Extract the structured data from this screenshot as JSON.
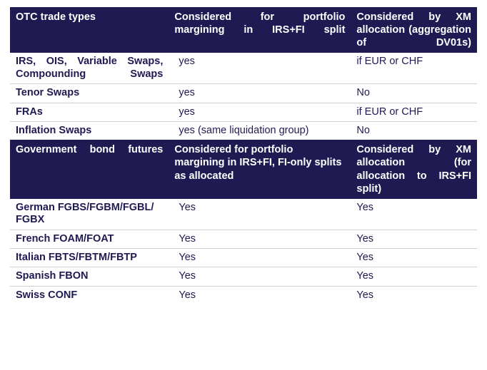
{
  "header1": {
    "col1": "OTC trade types",
    "col2": "Considered for portfolio margining in IRS+FI split",
    "col3": "Considered by XM allocation (aggregation of DV01s)"
  },
  "section1": {
    "rows": [
      {
        "c1": "IRS, OIS, Variable Swaps, Compounding Swaps",
        "c2": "yes",
        "c3": "if EUR or CHF"
      },
      {
        "c1": "Tenor Swaps",
        "c2": "yes",
        "c3": "No"
      },
      {
        "c1": "FRAs",
        "c2": "yes",
        "c3": "if EUR or CHF"
      },
      {
        "c1": "Inflation Swaps",
        "c2": "yes (same liquidation group)",
        "c3": "No"
      }
    ]
  },
  "header2": {
    "col1": "Government bond futures",
    "col2": "Considered for portfolio margining in IRS+FI, FI-only splits as allocated",
    "col3": "Considered by XM allocation (for allocation to IRS+FI split)"
  },
  "section2": {
    "rows": [
      {
        "c1": "German FGBS/FGBM/FGBL/ FGBX",
        "c2": "Yes",
        "c3": "Yes"
      },
      {
        "c1": "French FOAM/FOAT",
        "c2": "Yes",
        "c3": "Yes"
      },
      {
        "c1": "Italian FBTS/FBTM/FBTP",
        "c2": "Yes",
        "c3": "Yes"
      },
      {
        "c1": "Spanish FBON",
        "c2": "Yes",
        "c3": "Yes"
      },
      {
        "c1": "Swiss CONF",
        "c2": "Yes",
        "c3": "Yes"
      }
    ]
  }
}
